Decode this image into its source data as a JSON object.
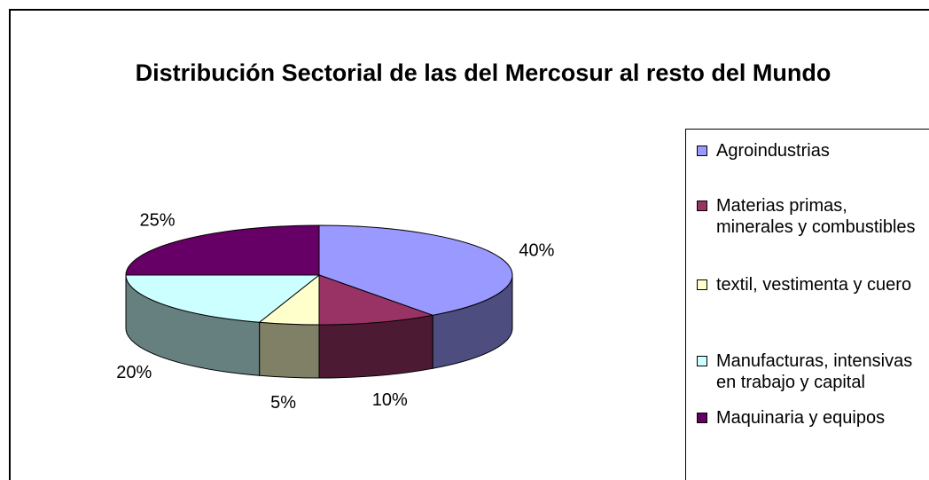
{
  "chart_data": {
    "type": "pie3d",
    "title": "Distribución Sectorial de las del Mercosur al resto del Mundo",
    "categories": [
      "Agroindustrias",
      "Materias primas, minerales y combustibles",
      "textil, vestimenta y cuero",
      "Manufacturas, intensivas en trabajo y capital",
      "Maquinaria y equipos"
    ],
    "values": [
      40,
      10,
      5,
      20,
      25
    ],
    "value_labels": [
      "40%",
      "10%",
      "5%",
      "20%",
      "25%"
    ],
    "colors": [
      "#9999ff",
      "#993366",
      "#ffffcc",
      "#ccffff",
      "#660066"
    ],
    "legend": "right"
  }
}
